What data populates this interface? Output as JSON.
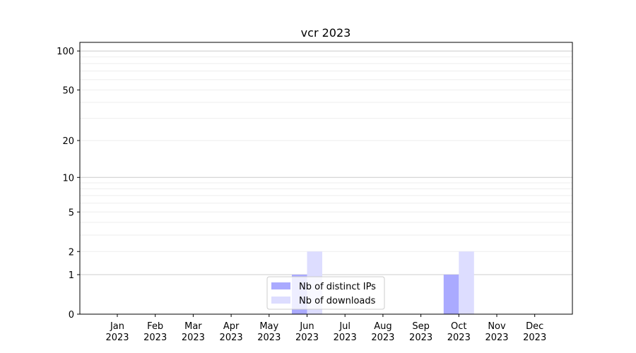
{
  "chart_data": {
    "type": "bar",
    "title": "vcr 2023",
    "xlabel": "",
    "ylabel": "",
    "yscale": "symlog",
    "ylim": [
      0,
      116
    ],
    "yticks": [
      0,
      1,
      2,
      5,
      10,
      20,
      50,
      100
    ],
    "grid": true,
    "legend_position": "bottom-center",
    "categories": [
      "Jan\n2023",
      "Feb\n2023",
      "Mar\n2023",
      "Apr\n2023",
      "May\n2023",
      "Jun\n2023",
      "Jul\n2023",
      "Aug\n2023",
      "Sep\n2023",
      "Oct\n2023",
      "Nov\n2023",
      "Dec\n2023"
    ],
    "series": [
      {
        "name": "Nb of distinct IPs",
        "color": "#aaaaff",
        "values": [
          0,
          0,
          0,
          0,
          0,
          1,
          0,
          0,
          0,
          1,
          0,
          0
        ]
      },
      {
        "name": "Nb of downloads",
        "color": "#ddddff",
        "values": [
          0,
          0,
          0,
          0,
          0,
          2,
          0,
          0,
          0,
          2,
          0,
          0
        ]
      }
    ]
  }
}
